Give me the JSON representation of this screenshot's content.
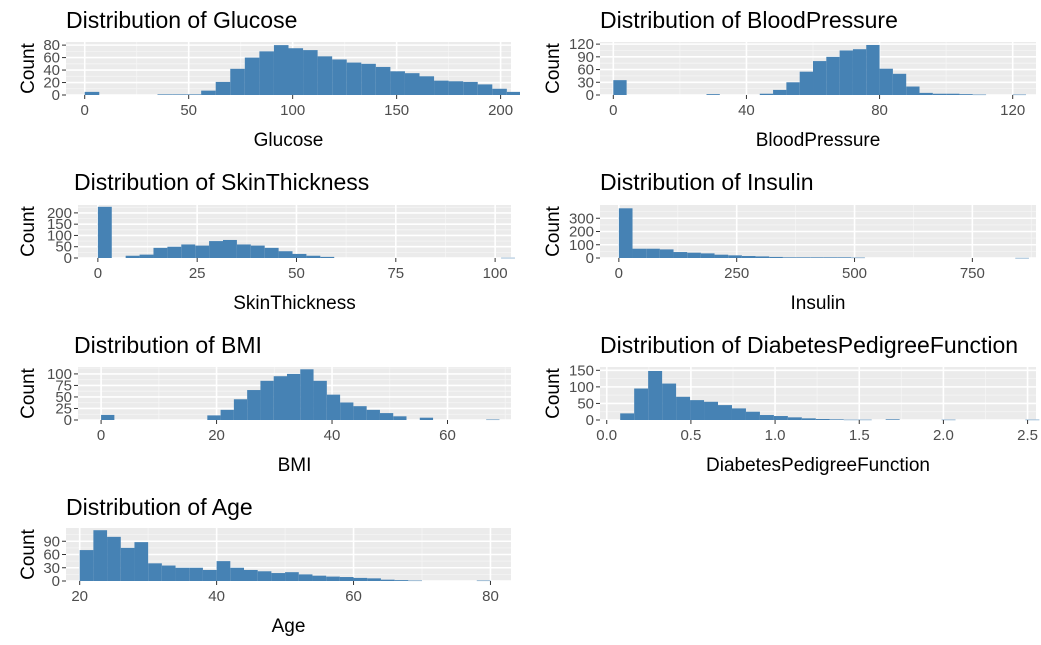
{
  "colors": {
    "bar": "#4682B4",
    "panel_bg": "#EBEBEB",
    "grid_major": "#FFFFFF",
    "tick_text": "#4D4D4D",
    "text": "#000000"
  },
  "chart_data": [
    {
      "type": "bar",
      "title": "Distribution of Glucose",
      "xlabel": "Glucose",
      "ylabel": "Count",
      "xlim": [
        -9,
        205
      ],
      "ylim": [
        0,
        85
      ],
      "xticks": [
        0,
        50,
        100,
        150,
        200
      ],
      "yticks": [
        0,
        20,
        40,
        60,
        80
      ],
      "grid": true,
      "bins": {
        "start": 0,
        "width": 7,
        "counts": [
          5,
          0,
          0,
          0,
          0,
          1,
          1,
          1,
          7,
          21,
          42,
          60,
          70,
          80,
          75,
          72,
          62,
          57,
          52,
          50,
          45,
          38,
          35,
          30,
          23,
          22,
          21,
          17,
          10,
          5
        ]
      }
    },
    {
      "type": "bar",
      "title": "Distribution of BloodPressure",
      "xlabel": "BloodPressure",
      "ylabel": "Count",
      "xlim": [
        -4,
        127
      ],
      "ylim": [
        0,
        125
      ],
      "xticks": [
        0,
        40,
        80,
        120
      ],
      "yticks": [
        0,
        30,
        60,
        90,
        120
      ],
      "grid": true,
      "bins": {
        "start": 0,
        "width": 4,
        "counts": [
          35,
          0,
          0,
          0,
          0,
          0,
          0,
          2,
          0,
          0,
          0,
          3,
          12,
          30,
          55,
          80,
          90,
          105,
          108,
          118,
          62,
          50,
          20,
          5,
          3,
          3,
          2,
          1,
          0,
          0,
          1
        ]
      }
    },
    {
      "type": "bar",
      "title": "Distribution of SkinThickness",
      "xlabel": "SkinThickness",
      "ylabel": "Count",
      "xlim": [
        -5,
        104
      ],
      "ylim": [
        0,
        235
      ],
      "xticks": [
        0,
        25,
        50,
        75,
        100
      ],
      "yticks": [
        0,
        50,
        100,
        150,
        200
      ],
      "grid": true,
      "bins": {
        "start": 0,
        "width": 3.5,
        "counts": [
          227,
          0,
          10,
          15,
          45,
          50,
          60,
          55,
          75,
          80,
          60,
          55,
          45,
          30,
          18,
          10,
          5,
          0,
          0,
          0,
          0,
          0,
          0,
          0,
          0,
          0,
          0,
          0,
          0,
          1
        ]
      }
    },
    {
      "type": "bar",
      "title": "Distribution of Insulin",
      "xlabel": "Insulin",
      "ylabel": "Count",
      "xlim": [
        -40,
        885
      ],
      "ylim": [
        0,
        400
      ],
      "xticks": [
        0,
        250,
        500,
        750
      ],
      "yticks": [
        0,
        100,
        200,
        300
      ],
      "grid": true,
      "bins": {
        "start": 0,
        "width": 29,
        "counts": [
          375,
          70,
          70,
          65,
          45,
          40,
          35,
          25,
          20,
          15,
          12,
          8,
          5,
          5,
          5,
          5,
          5,
          3,
          0,
          0,
          0,
          0,
          0,
          0,
          0,
          0,
          0,
          0,
          0,
          1
        ]
      }
    },
    {
      "type": "bar",
      "title": "Distribution of BMI",
      "xlabel": "BMI",
      "ylabel": "Count",
      "xlim": [
        -4,
        71
      ],
      "ylim": [
        0,
        115
      ],
      "xticks": [
        0,
        20,
        40,
        60
      ],
      "yticks": [
        0,
        25,
        50,
        75,
        100
      ],
      "grid": true,
      "bins": {
        "start": 0,
        "width": 2.3,
        "counts": [
          11,
          0,
          0,
          0,
          0,
          0,
          0,
          0,
          10,
          22,
          45,
          65,
          85,
          95,
          100,
          110,
          85,
          55,
          38,
          30,
          22,
          15,
          8,
          0,
          5,
          0,
          0,
          0,
          0,
          1
        ]
      }
    },
    {
      "type": "bar",
      "title": "Distribution of DiabetesPedigreeFunction",
      "xlabel": "DiabetesPedigreeFunction",
      "ylabel": "Count",
      "xlim": [
        -0.04,
        2.55
      ],
      "ylim": [
        0,
        160
      ],
      "xticks": [
        0.0,
        0.5,
        1.0,
        1.5,
        2.0,
        2.5
      ],
      "yticks": [
        0,
        50,
        100,
        150
      ],
      "grid": true,
      "bins": {
        "start": 0.08,
        "width": 0.083,
        "counts": [
          20,
          95,
          148,
          110,
          70,
          60,
          55,
          45,
          35,
          25,
          15,
          12,
          8,
          5,
          3,
          2,
          1,
          1,
          0,
          2,
          0,
          0,
          0,
          1,
          0,
          0,
          0,
          0,
          0,
          1
        ]
      }
    },
    {
      "type": "bar",
      "title": "Distribution of Age",
      "xlabel": "Age",
      "ylabel": "Count",
      "xlim": [
        18,
        83
      ],
      "ylim": [
        0,
        120
      ],
      "xticks": [
        20,
        40,
        60,
        80
      ],
      "yticks": [
        0,
        30,
        60,
        90
      ],
      "grid": true,
      "bins": {
        "start": 20,
        "width": 2,
        "counts": [
          70,
          115,
          100,
          75,
          88,
          40,
          35,
          30,
          30,
          25,
          45,
          30,
          25,
          22,
          18,
          20,
          15,
          12,
          10,
          9,
          7,
          6,
          3,
          2,
          1,
          0,
          0,
          0,
          0,
          1
        ]
      }
    }
  ]
}
